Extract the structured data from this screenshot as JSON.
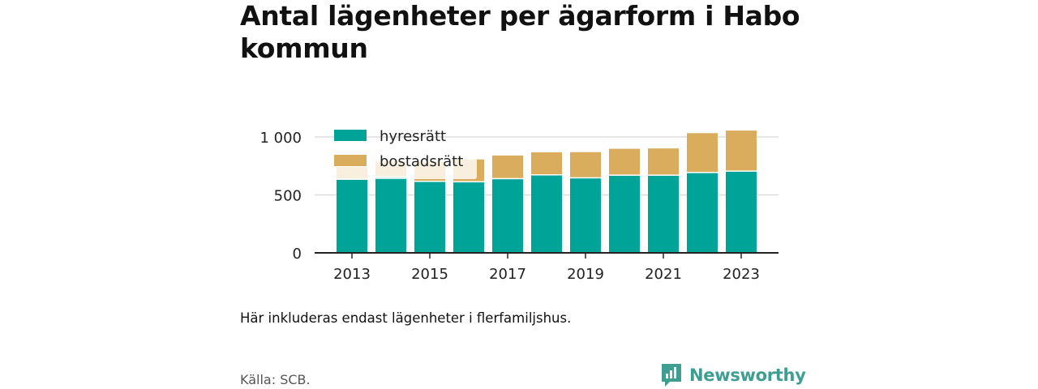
{
  "title": "Antal lägenheter per ägarform i Habo kommun",
  "note": "Här inkluderas endast lägenheter i flerfamiljshus.",
  "source": "Källa: SCB.",
  "brand": "Newsworthy",
  "colors": {
    "hyresratt": "#00a398",
    "bostadsratt": "#d9ad5d",
    "brand": "#3e9e91",
    "grid": "#dddddd",
    "axis": "#222222"
  },
  "chart_data": {
    "type": "bar",
    "stacked": true,
    "categories": [
      "2013",
      "2014",
      "2015",
      "2016",
      "2017",
      "2018",
      "2019",
      "2020",
      "2021",
      "2022",
      "2023"
    ],
    "x_tick_labels": [
      "2013",
      "2015",
      "2017",
      "2019",
      "2021",
      "2023"
    ],
    "y_ticks": [
      0,
      500,
      1000
    ],
    "y_tick_labels": [
      "0",
      "500",
      "1 000"
    ],
    "ylim": [
      0,
      1100
    ],
    "grid": true,
    "legend_position": "top-left",
    "series": [
      {
        "name": "hyresrätt",
        "values": [
          630,
          650,
          612,
          608,
          635,
          668,
          642,
          665,
          665,
          688,
          700
        ]
      },
      {
        "name": "bostadsrätt",
        "values": [
          110,
          140,
          175,
          198,
          205,
          200,
          227,
          233,
          236,
          345,
          355
        ]
      }
    ]
  }
}
